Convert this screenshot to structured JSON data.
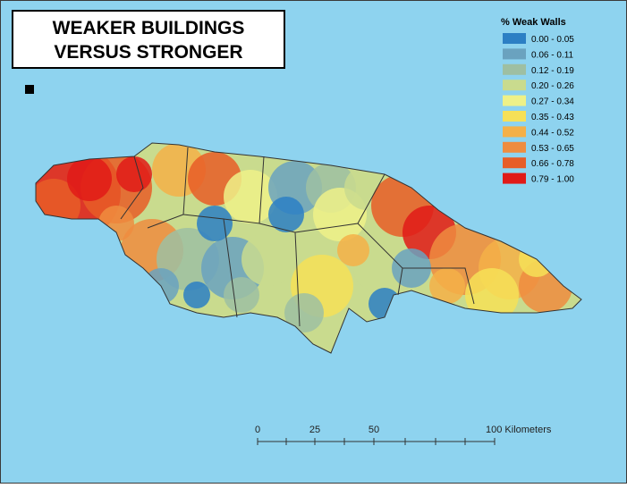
{
  "title": [
    "WEAKER BUILDINGS",
    "VERSUS STRONGER"
  ],
  "legend": {
    "title": "% Weak Walls",
    "items": [
      {
        "label": "0.00 - 0.05",
        "color": "#2c7fc4"
      },
      {
        "label": "0.06 - 0.11",
        "color": "#6aa2bf"
      },
      {
        "label": "0.12 - 0.19",
        "color": "#9ebfa2"
      },
      {
        "label": "0.20 - 0.26",
        "color": "#c9db8e"
      },
      {
        "label": "0.27 - 0.34",
        "color": "#eef188"
      },
      {
        "label": "0.35 - 0.43",
        "color": "#f6e057"
      },
      {
        "label": "0.44 - 0.52",
        "color": "#f4b048"
      },
      {
        "label": "0.53 - 0.65",
        "color": "#ef8c3f"
      },
      {
        "label": "0.66 - 0.78",
        "color": "#e75d27"
      },
      {
        "label": "0.79 - 1.00",
        "color": "#e01a17"
      }
    ]
  },
  "scale_bar": {
    "labels": [
      "0",
      "25",
      "50",
      "100 Kilometers"
    ]
  }
}
